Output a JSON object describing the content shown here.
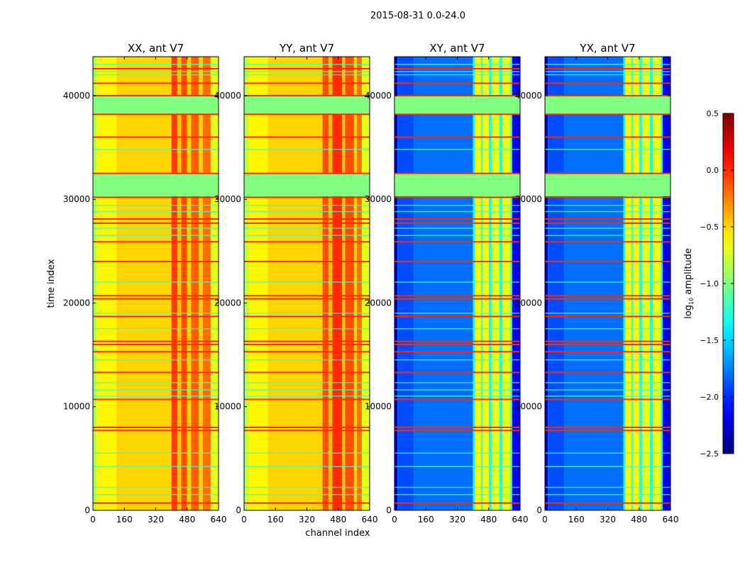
{
  "chart_data": {
    "type": "heatmap",
    "suptitle": "2015-08-31 0.0-24.0",
    "ylabel": "time index",
    "xlabel": "channel index",
    "xlim": [
      0,
      640
    ],
    "ylim": [
      0,
      43760
    ],
    "xticks": [
      0,
      160,
      320,
      480,
      640
    ],
    "yticks": [
      0,
      10000,
      20000,
      30000,
      40000
    ],
    "colorbar": {
      "label": "log10 amplitude",
      "label_main": "log",
      "label_sub": "10",
      "label_rest": " amplitude",
      "range": [
        -2.5,
        0.5
      ],
      "ticks": [
        "0.5",
        "0.0",
        "−0.5",
        "−1.0",
        "−1.5",
        "−2.0",
        "−2.5"
      ],
      "tick_values": [
        0.5,
        0.0,
        -0.5,
        -1.0,
        -1.5,
        -2.0,
        -2.5
      ],
      "colormap": "jet"
    },
    "flagged_value": -1.0,
    "flagged_bands": [
      [
        30300,
        32500
      ],
      [
        38200,
        40000
      ]
    ],
    "red_rows": [
      700,
      7700,
      8000,
      10700,
      13300,
      15300,
      16000,
      16300,
      18700,
      20400,
      20700,
      24000,
      25900,
      27700,
      28100,
      30200,
      32500,
      36000,
      38200,
      40000,
      41200,
      42600
    ],
    "bright_rows": [
      1500,
      2200,
      4200,
      5500,
      11000,
      11600,
      12300,
      14500,
      17500,
      19000,
      22000,
      26500,
      27200,
      28800,
      29400,
      34800,
      42000,
      42300,
      43000
    ],
    "panels": [
      {
        "title": "XX, ant V7",
        "channels": [
          [
            0,
            20,
            -0.85
          ],
          [
            20,
            120,
            -0.6
          ],
          [
            120,
            400,
            -0.5
          ],
          [
            400,
            430,
            -0.05
          ],
          [
            430,
            450,
            -0.45
          ],
          [
            450,
            480,
            -0.1
          ],
          [
            480,
            500,
            -0.5
          ],
          [
            500,
            540,
            -0.15
          ],
          [
            540,
            560,
            -0.5
          ],
          [
            560,
            600,
            -0.2
          ],
          [
            600,
            640,
            -0.7
          ]
        ],
        "row_boost": 0.35
      },
      {
        "title": "YY, ant V7",
        "channels": [
          [
            0,
            20,
            -0.85
          ],
          [
            20,
            120,
            -0.6
          ],
          [
            120,
            400,
            -0.5
          ],
          [
            400,
            430,
            -0.1
          ],
          [
            430,
            450,
            -0.45
          ],
          [
            450,
            500,
            0.0
          ],
          [
            500,
            515,
            -0.45
          ],
          [
            515,
            560,
            -0.1
          ],
          [
            560,
            575,
            -0.5
          ],
          [
            575,
            600,
            -0.2
          ],
          [
            600,
            640,
            -0.7
          ]
        ],
        "row_boost": 0.35
      },
      {
        "title": "XY, ant V7",
        "channels": [
          [
            0,
            15,
            -2.3
          ],
          [
            15,
            100,
            -1.9
          ],
          [
            100,
            400,
            -1.8
          ],
          [
            400,
            410,
            -1.3
          ],
          [
            410,
            440,
            -0.6
          ],
          [
            440,
            450,
            -1.2
          ],
          [
            450,
            480,
            -0.6
          ],
          [
            480,
            495,
            -1.3
          ],
          [
            495,
            535,
            -0.7
          ],
          [
            535,
            550,
            -1.3
          ],
          [
            550,
            590,
            -0.7
          ],
          [
            590,
            600,
            -1.3
          ],
          [
            600,
            640,
            -2.2
          ]
        ],
        "row_boost": 0.6
      },
      {
        "title": "YX, ant V7",
        "channels": [
          [
            0,
            15,
            -2.3
          ],
          [
            15,
            100,
            -1.9
          ],
          [
            100,
            400,
            -1.8
          ],
          [
            400,
            410,
            -1.3
          ],
          [
            410,
            440,
            -0.6
          ],
          [
            440,
            450,
            -1.2
          ],
          [
            450,
            480,
            -0.6
          ],
          [
            480,
            495,
            -1.3
          ],
          [
            495,
            535,
            -0.7
          ],
          [
            535,
            550,
            -1.3
          ],
          [
            550,
            590,
            -0.7
          ],
          [
            590,
            600,
            -1.3
          ],
          [
            600,
            640,
            -2.2
          ]
        ],
        "row_boost": 0.6
      }
    ]
  }
}
